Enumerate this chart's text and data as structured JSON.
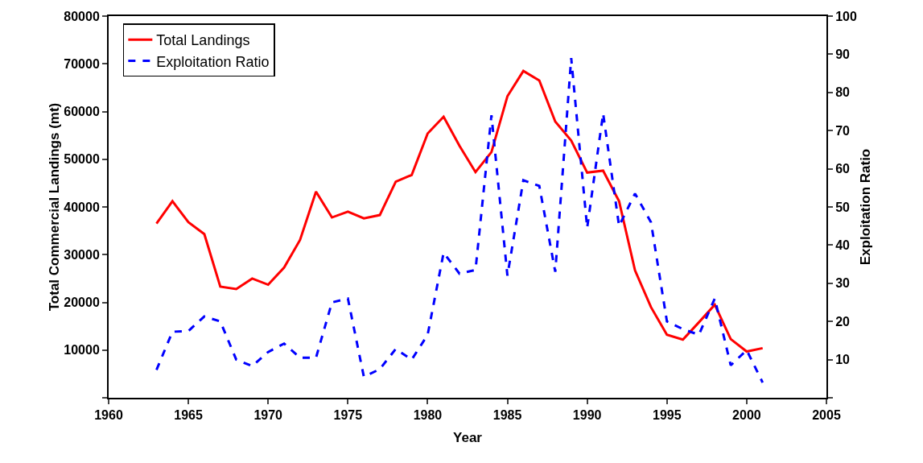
{
  "chart_data": {
    "type": "line",
    "xlabel": "Year",
    "ylabel": "Total Commercial Landings (mt)",
    "y2label": "Exploitation Ratio",
    "x": [
      1963,
      1964,
      1965,
      1966,
      1967,
      1968,
      1969,
      1970,
      1971,
      1972,
      1973,
      1974,
      1975,
      1976,
      1977,
      1978,
      1979,
      1980,
      1981,
      1982,
      1983,
      1984,
      1985,
      1986,
      1987,
      1988,
      1989,
      1990,
      1991,
      1992,
      1993,
      1994,
      1995,
      1996,
      1997,
      1998,
      1999,
      2000,
      2001
    ],
    "series": [
      {
        "name": "Total Landings",
        "color": "#ff0000",
        "line_style": "solid",
        "values": [
          36500,
          41200,
          36800,
          34300,
          23300,
          22800,
          25000,
          23700,
          27300,
          33100,
          43200,
          37800,
          39000,
          37600,
          38300,
          45300,
          46700,
          55400,
          58900,
          52800,
          47300,
          51500,
          63200,
          68500,
          66500,
          57900,
          53900,
          47200,
          47600,
          41200,
          26700,
          19000,
          13200,
          12200,
          15800,
          19500,
          12300,
          9700,
          10400
        ]
      },
      {
        "name": "Exploitation Ratio",
        "color": "#0000ff",
        "line_style": "dashed",
        "axis": "y2",
        "values": [
          7.3,
          17.3,
          17.5,
          21.3,
          20,
          10,
          8.3,
          12,
          14.2,
          10.5,
          10.5,
          25,
          26,
          5.5,
          7.5,
          12.8,
          10,
          16.5,
          38,
          32.5,
          33.5,
          74,
          32,
          57,
          55.5,
          33,
          89,
          44.5,
          74.5,
          45,
          53.5,
          46,
          20,
          18,
          16.5,
          26,
          8.5,
          12.5,
          4
        ]
      }
    ],
    "xlim": [
      1960,
      2005
    ],
    "xticks": [
      1960,
      1965,
      1970,
      1975,
      1980,
      1985,
      1990,
      1995,
      2000,
      2005
    ],
    "ylim": [
      0,
      80000
    ],
    "yticks": [
      {
        "value": 0,
        "label": null
      },
      10000,
      20000,
      30000,
      40000,
      50000,
      60000,
      70000,
      80000
    ],
    "y2lim": [
      0,
      100
    ],
    "y2ticks": [
      {
        "value": 0,
        "label": null
      },
      10,
      20,
      30,
      40,
      50,
      60,
      70,
      80,
      90,
      100
    ],
    "grid": false,
    "legend": "top left",
    "marker": "none"
  }
}
